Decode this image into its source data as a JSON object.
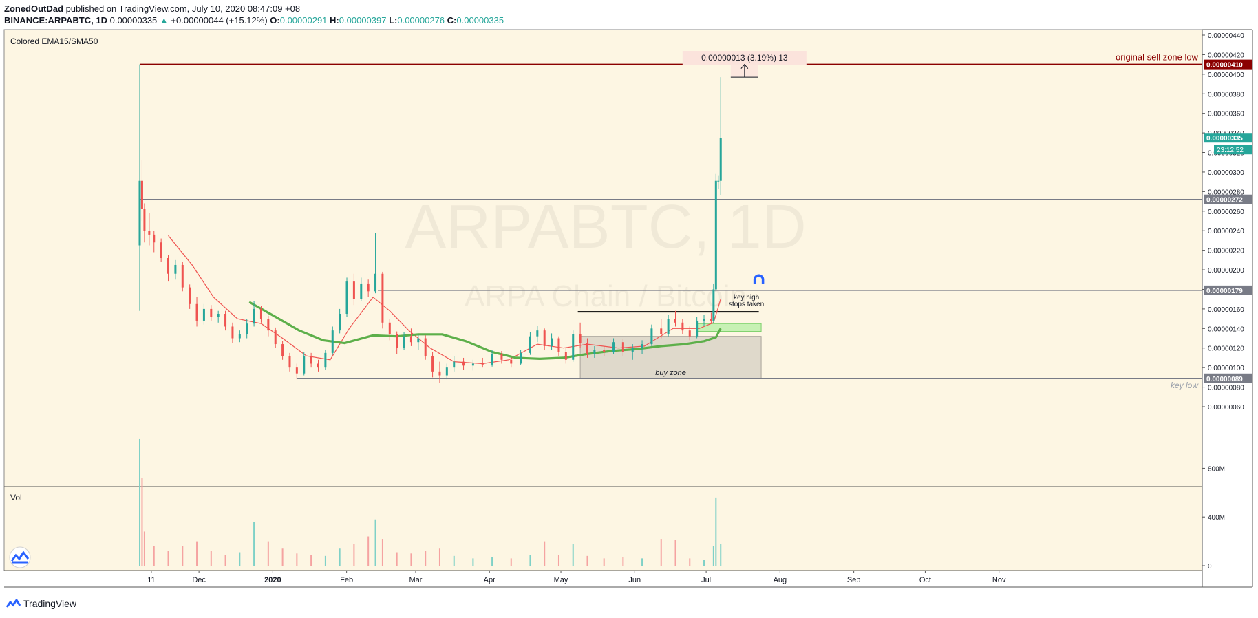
{
  "header": {
    "author": "ZonedOutDad",
    "published": "published on TradingView.com, July 10, 2020 08:47:09 +08"
  },
  "symbol_line": {
    "symbol": "BINANCE:ARPABTC, 1D",
    "price": "0.00000335",
    "arrow": "▲",
    "change": "+0.00000044 (+15.12%)",
    "o_label": "O:",
    "o": "0.00000291",
    "h_label": "H:",
    "h": "0.00000397",
    "l_label": "L:",
    "l": "0.00000276",
    "c_label": "C:",
    "c": "0.00000335"
  },
  "footer": {
    "brand": "TradingView"
  },
  "colors": {
    "background": "#fdf6e3",
    "up": "#26a69a",
    "down": "#ef5350",
    "ema15": "#ef5350",
    "sma50": "#5daf4a",
    "resistance": "#8b0000",
    "gray_line": "#787b86"
  },
  "chart_data": {
    "type": "candlestick",
    "indicator_label": "Colored EMA15/SMA50",
    "volume_label": "Vol",
    "watermark_symbol": "ARPABTC, 1D",
    "watermark_name": "ARPA Chain / Bitcoin",
    "x_tick_labels": [
      "11",
      "Dec",
      "2020",
      "Feb",
      "Mar",
      "Apr",
      "May",
      "Jun",
      "Jul",
      "Aug",
      "Sep",
      "Oct",
      "Nov"
    ],
    "y_tick_labels": [
      "0.00000440",
      "0.00000420",
      "0.00000400",
      "0.00000380",
      "0.00000360",
      "0.00000340",
      "0.00000320",
      "0.00000300",
      "0.00000280",
      "0.00000260",
      "0.00000240",
      "0.00000220",
      "0.00000200",
      "0.00000180",
      "0.00000160",
      "0.00000140",
      "0.00000120",
      "0.00000100",
      "0.00000080",
      "0.00000060"
    ],
    "y_ticks": [
      440,
      420,
      400,
      380,
      360,
      340,
      320,
      300,
      280,
      260,
      240,
      220,
      200,
      180,
      160,
      140,
      120,
      100,
      80,
      60
    ],
    "ylim_satoshi": [
      47,
      446
    ],
    "volume_tick_labels": [
      "800M",
      "400M",
      "0"
    ],
    "volume_ticks_millions": [
      800,
      400,
      0
    ],
    "price_tags": [
      {
        "value": 410,
        "label": "0.00000410",
        "style": "dark-red"
      },
      {
        "value": 335,
        "label": "0.00000335",
        "style": "green"
      },
      {
        "value": 272,
        "label": "0.00000272",
        "style": "gray"
      },
      {
        "value": 179,
        "label": "0.00000179",
        "style": "gray"
      },
      {
        "value": 89,
        "label": "0.00000089",
        "style": "gray"
      }
    ],
    "countdown": "23:12:52",
    "horizontal_levels": [
      {
        "value": 410,
        "from_date": "2019-11-09",
        "label": "original sell zone low"
      },
      {
        "value": 272,
        "from_date": "2019-11-09",
        "label": ""
      },
      {
        "value": 179,
        "from_date": "2020-02-17",
        "label": ""
      },
      {
        "value": 157,
        "from_date": "2020-05-11",
        "to_date": "2020-07-26",
        "label": "key high\nstops taken"
      },
      {
        "value": 89,
        "from_date": "2020-01-14",
        "label": "key low"
      }
    ],
    "zones": [
      {
        "label": "buy zone",
        "from_date": "2020-05-12",
        "to_date": "2020-07-27",
        "low": 89,
        "high": 132
      },
      {
        "label": "",
        "from_date": "2020-06-30",
        "to_date": "2020-07-27",
        "low": 137,
        "high": 145
      }
    ],
    "measurement": {
      "text": "0.00000013 (3.19%) 13",
      "from": 397,
      "to": 410,
      "date": "2020-07-20"
    },
    "candles": [
      {
        "date": "2019-11-09",
        "o": 225,
        "h": 410,
        "l": 158,
        "c": 291
      },
      {
        "date": "2019-11-10",
        "o": 291,
        "h": 312,
        "l": 250,
        "c": 262
      },
      {
        "date": "2019-11-11",
        "o": 262,
        "h": 268,
        "l": 228,
        "c": 240
      },
      {
        "date": "2019-11-13",
        "o": 240,
        "h": 258,
        "l": 225,
        "c": 236
      },
      {
        "date": "2019-11-15",
        "o": 236,
        "h": 240,
        "l": 218,
        "c": 228
      },
      {
        "date": "2019-11-18",
        "o": 228,
        "h": 232,
        "l": 208,
        "c": 212
      },
      {
        "date": "2019-11-21",
        "o": 212,
        "h": 215,
        "l": 188,
        "c": 196
      },
      {
        "date": "2019-11-24",
        "o": 196,
        "h": 210,
        "l": 190,
        "c": 205
      },
      {
        "date": "2019-11-27",
        "o": 205,
        "h": 208,
        "l": 178,
        "c": 182
      },
      {
        "date": "2019-11-30",
        "o": 182,
        "h": 185,
        "l": 160,
        "c": 165
      },
      {
        "date": "2019-12-03",
        "o": 165,
        "h": 172,
        "l": 142,
        "c": 148
      },
      {
        "date": "2019-12-06",
        "o": 148,
        "h": 165,
        "l": 144,
        "c": 160
      },
      {
        "date": "2019-12-09",
        "o": 160,
        "h": 164,
        "l": 148,
        "c": 152
      },
      {
        "date": "2019-12-12",
        "o": 152,
        "h": 158,
        "l": 146,
        "c": 155
      },
      {
        "date": "2019-12-15",
        "o": 155,
        "h": 158,
        "l": 138,
        "c": 142
      },
      {
        "date": "2019-12-18",
        "o": 142,
        "h": 146,
        "l": 125,
        "c": 130
      },
      {
        "date": "2019-12-21",
        "o": 130,
        "h": 138,
        "l": 126,
        "c": 134
      },
      {
        "date": "2019-12-24",
        "o": 134,
        "h": 150,
        "l": 130,
        "c": 145
      },
      {
        "date": "2019-12-27",
        "o": 145,
        "h": 168,
        "l": 142,
        "c": 160
      },
      {
        "date": "2019-12-30",
        "o": 160,
        "h": 163,
        "l": 146,
        "c": 150
      },
      {
        "date": "2020-01-02",
        "o": 150,
        "h": 153,
        "l": 132,
        "c": 138
      },
      {
        "date": "2020-01-05",
        "o": 138,
        "h": 141,
        "l": 120,
        "c": 124
      },
      {
        "date": "2020-01-08",
        "o": 124,
        "h": 127,
        "l": 108,
        "c": 112
      },
      {
        "date": "2020-01-11",
        "o": 112,
        "h": 115,
        "l": 96,
        "c": 100
      },
      {
        "date": "2020-01-14",
        "o": 100,
        "h": 104,
        "l": 88,
        "c": 94
      },
      {
        "date": "2020-01-17",
        "o": 94,
        "h": 116,
        "l": 92,
        "c": 112
      },
      {
        "date": "2020-01-20",
        "o": 112,
        "h": 115,
        "l": 100,
        "c": 104
      },
      {
        "date": "2020-01-23",
        "o": 104,
        "h": 108,
        "l": 96,
        "c": 100
      },
      {
        "date": "2020-01-26",
        "o": 100,
        "h": 118,
        "l": 98,
        "c": 115
      },
      {
        "date": "2020-01-29",
        "o": 115,
        "h": 142,
        "l": 113,
        "c": 138
      },
      {
        "date": "2020-02-01",
        "o": 138,
        "h": 160,
        "l": 135,
        "c": 155
      },
      {
        "date": "2020-02-04",
        "o": 155,
        "h": 192,
        "l": 152,
        "c": 188
      },
      {
        "date": "2020-02-07",
        "o": 188,
        "h": 196,
        "l": 164,
        "c": 170
      },
      {
        "date": "2020-02-10",
        "o": 170,
        "h": 192,
        "l": 168,
        "c": 186
      },
      {
        "date": "2020-02-13",
        "o": 186,
        "h": 190,
        "l": 172,
        "c": 178
      },
      {
        "date": "2020-02-16",
        "o": 178,
        "h": 238,
        "l": 176,
        "c": 196
      },
      {
        "date": "2020-02-19",
        "o": 196,
        "h": 198,
        "l": 140,
        "c": 146
      },
      {
        "date": "2020-02-22",
        "o": 146,
        "h": 150,
        "l": 128,
        "c": 134
      },
      {
        "date": "2020-02-25",
        "o": 134,
        "h": 137,
        "l": 114,
        "c": 120
      },
      {
        "date": "2020-02-28",
        "o": 120,
        "h": 136,
        "l": 118,
        "c": 132
      },
      {
        "date": "2020-03-02",
        "o": 132,
        "h": 140,
        "l": 122,
        "c": 126
      },
      {
        "date": "2020-03-05",
        "o": 126,
        "h": 134,
        "l": 118,
        "c": 130
      },
      {
        "date": "2020-03-08",
        "o": 130,
        "h": 133,
        "l": 108,
        "c": 112
      },
      {
        "date": "2020-03-11",
        "o": 112,
        "h": 116,
        "l": 90,
        "c": 96
      },
      {
        "date": "2020-03-14",
        "o": 96,
        "h": 106,
        "l": 84,
        "c": 92
      },
      {
        "date": "2020-03-17",
        "o": 92,
        "h": 104,
        "l": 88,
        "c": 100
      },
      {
        "date": "2020-03-20",
        "o": 100,
        "h": 112,
        "l": 96,
        "c": 106
      },
      {
        "date": "2020-03-24",
        "o": 106,
        "h": 110,
        "l": 98,
        "c": 102
      },
      {
        "date": "2020-03-28",
        "o": 102,
        "h": 108,
        "l": 97,
        "c": 104
      },
      {
        "date": "2020-04-01",
        "o": 104,
        "h": 110,
        "l": 100,
        "c": 103
      },
      {
        "date": "2020-04-05",
        "o": 103,
        "h": 118,
        "l": 101,
        "c": 114
      },
      {
        "date": "2020-04-09",
        "o": 114,
        "h": 117,
        "l": 104,
        "c": 108
      },
      {
        "date": "2020-04-13",
        "o": 108,
        "h": 111,
        "l": 100,
        "c": 104
      },
      {
        "date": "2020-04-17",
        "o": 104,
        "h": 118,
        "l": 103,
        "c": 115
      },
      {
        "date": "2020-04-21",
        "o": 115,
        "h": 136,
        "l": 113,
        "c": 132
      },
      {
        "date": "2020-04-24",
        "o": 132,
        "h": 143,
        "l": 126,
        "c": 138
      },
      {
        "date": "2020-04-27",
        "o": 138,
        "h": 140,
        "l": 118,
        "c": 122
      },
      {
        "date": "2020-04-30",
        "o": 122,
        "h": 135,
        "l": 118,
        "c": 130
      },
      {
        "date": "2020-05-03",
        "o": 130,
        "h": 132,
        "l": 112,
        "c": 116
      },
      {
        "date": "2020-05-06",
        "o": 116,
        "h": 120,
        "l": 104,
        "c": 108
      },
      {
        "date": "2020-05-09",
        "o": 108,
        "h": 138,
        "l": 106,
        "c": 134
      },
      {
        "date": "2020-05-12",
        "o": 134,
        "h": 146,
        "l": 120,
        "c": 125
      },
      {
        "date": "2020-05-15",
        "o": 125,
        "h": 130,
        "l": 110,
        "c": 114
      },
      {
        "date": "2020-05-18",
        "o": 114,
        "h": 122,
        "l": 110,
        "c": 118
      },
      {
        "date": "2020-05-22",
        "o": 118,
        "h": 122,
        "l": 112,
        "c": 116
      },
      {
        "date": "2020-05-26",
        "o": 116,
        "h": 130,
        "l": 114,
        "c": 126
      },
      {
        "date": "2020-05-30",
        "o": 126,
        "h": 129,
        "l": 112,
        "c": 116
      },
      {
        "date": "2020-06-03",
        "o": 116,
        "h": 124,
        "l": 108,
        "c": 120
      },
      {
        "date": "2020-06-07",
        "o": 120,
        "h": 128,
        "l": 114,
        "c": 124
      },
      {
        "date": "2020-06-11",
        "o": 124,
        "h": 144,
        "l": 122,
        "c": 140
      },
      {
        "date": "2020-06-15",
        "o": 140,
        "h": 150,
        "l": 130,
        "c": 134
      },
      {
        "date": "2020-06-18",
        "o": 134,
        "h": 154,
        "l": 132,
        "c": 150
      },
      {
        "date": "2020-06-21",
        "o": 150,
        "h": 158,
        "l": 142,
        "c": 146
      },
      {
        "date": "2020-06-24",
        "o": 146,
        "h": 150,
        "l": 134,
        "c": 138
      },
      {
        "date": "2020-06-27",
        "o": 138,
        "h": 142,
        "l": 128,
        "c": 132
      },
      {
        "date": "2020-06-30",
        "o": 132,
        "h": 152,
        "l": 130,
        "c": 148
      },
      {
        "date": "2020-07-03",
        "o": 148,
        "h": 154,
        "l": 143,
        "c": 150
      },
      {
        "date": "2020-07-06",
        "o": 150,
        "h": 156,
        "l": 145,
        "c": 148
      },
      {
        "date": "2020-07-07",
        "o": 148,
        "h": 186,
        "l": 146,
        "c": 180
      },
      {
        "date": "2020-07-08",
        "o": 180,
        "h": 298,
        "l": 178,
        "c": 291
      },
      {
        "date": "2020-07-09",
        "o": 291,
        "h": 296,
        "l": 283,
        "c": 291
      },
      {
        "date": "2020-07-10",
        "o": 291,
        "h": 397,
        "l": 276,
        "c": 335
      }
    ],
    "volume_millions": [
      {
        "date": "2019-11-09",
        "v": 1040
      },
      {
        "date": "2019-11-10",
        "v": 720
      },
      {
        "date": "2019-11-11",
        "v": 280
      },
      {
        "date": "2019-11-15",
        "v": 160
      },
      {
        "date": "2019-11-21",
        "v": 120
      },
      {
        "date": "2019-11-27",
        "v": 160
      },
      {
        "date": "2019-12-03",
        "v": 200
      },
      {
        "date": "2019-12-09",
        "v": 120
      },
      {
        "date": "2019-12-15",
        "v": 90
      },
      {
        "date": "2019-12-21",
        "v": 110
      },
      {
        "date": "2019-12-27",
        "v": 360
      },
      {
        "date": "2020-01-02",
        "v": 200
      },
      {
        "date": "2020-01-08",
        "v": 140
      },
      {
        "date": "2020-01-14",
        "v": 100
      },
      {
        "date": "2020-01-20",
        "v": 90
      },
      {
        "date": "2020-01-26",
        "v": 80
      },
      {
        "date": "2020-02-01",
        "v": 140
      },
      {
        "date": "2020-02-07",
        "v": 180
      },
      {
        "date": "2020-02-13",
        "v": 240
      },
      {
        "date": "2020-02-16",
        "v": 380
      },
      {
        "date": "2020-02-19",
        "v": 220
      },
      {
        "date": "2020-02-25",
        "v": 110
      },
      {
        "date": "2020-03-02",
        "v": 100
      },
      {
        "date": "2020-03-08",
        "v": 120
      },
      {
        "date": "2020-03-14",
        "v": 140
      },
      {
        "date": "2020-03-20",
        "v": 80
      },
      {
        "date": "2020-03-28",
        "v": 60
      },
      {
        "date": "2020-04-05",
        "v": 70
      },
      {
        "date": "2020-04-13",
        "v": 60
      },
      {
        "date": "2020-04-21",
        "v": 90
      },
      {
        "date": "2020-04-27",
        "v": 200
      },
      {
        "date": "2020-05-03",
        "v": 90
      },
      {
        "date": "2020-05-09",
        "v": 180
      },
      {
        "date": "2020-05-15",
        "v": 80
      },
      {
        "date": "2020-05-22",
        "v": 60
      },
      {
        "date": "2020-05-30",
        "v": 70
      },
      {
        "date": "2020-06-07",
        "v": 60
      },
      {
        "date": "2020-06-15",
        "v": 220
      },
      {
        "date": "2020-06-21",
        "v": 210
      },
      {
        "date": "2020-06-27",
        "v": 60
      },
      {
        "date": "2020-07-03",
        "v": 50
      },
      {
        "date": "2020-07-07",
        "v": 160
      },
      {
        "date": "2020-07-08",
        "v": 560
      },
      {
        "date": "2020-07-10",
        "v": 180
      }
    ],
    "ema15": [
      {
        "date": "2019-11-21",
        "v": 235
      },
      {
        "date": "2019-12-01",
        "v": 205
      },
      {
        "date": "2019-12-10",
        "v": 172
      },
      {
        "date": "2019-12-20",
        "v": 150
      },
      {
        "date": "2019-12-30",
        "v": 145
      },
      {
        "date": "2020-01-08",
        "v": 130
      },
      {
        "date": "2020-01-18",
        "v": 112
      },
      {
        "date": "2020-01-28",
        "v": 108
      },
      {
        "date": "2020-02-05",
        "v": 140
      },
      {
        "date": "2020-02-15",
        "v": 172
      },
      {
        "date": "2020-02-22",
        "v": 158
      },
      {
        "date": "2020-03-01",
        "v": 138
      },
      {
        "date": "2020-03-10",
        "v": 120
      },
      {
        "date": "2020-03-20",
        "v": 106
      },
      {
        "date": "2020-04-01",
        "v": 104
      },
      {
        "date": "2020-04-12",
        "v": 108
      },
      {
        "date": "2020-04-24",
        "v": 124
      },
      {
        "date": "2020-05-05",
        "v": 120
      },
      {
        "date": "2020-05-15",
        "v": 124
      },
      {
        "date": "2020-05-28",
        "v": 120
      },
      {
        "date": "2020-06-08",
        "v": 122
      },
      {
        "date": "2020-06-20",
        "v": 140
      },
      {
        "date": "2020-07-01",
        "v": 140
      },
      {
        "date": "2020-07-07",
        "v": 146
      },
      {
        "date": "2020-07-10",
        "v": 170
      }
    ],
    "sma50": [
      {
        "date": "2019-12-25",
        "v": 167
      },
      {
        "date": "2020-01-05",
        "v": 152
      },
      {
        "date": "2020-01-15",
        "v": 138
      },
      {
        "date": "2020-01-25",
        "v": 128
      },
      {
        "date": "2020-02-03",
        "v": 125
      },
      {
        "date": "2020-02-15",
        "v": 133
      },
      {
        "date": "2020-02-25",
        "v": 132
      },
      {
        "date": "2020-03-05",
        "v": 134
      },
      {
        "date": "2020-03-15",
        "v": 134
      },
      {
        "date": "2020-03-25",
        "v": 127
      },
      {
        "date": "2020-04-05",
        "v": 116
      },
      {
        "date": "2020-04-15",
        "v": 110
      },
      {
        "date": "2020-04-25",
        "v": 109
      },
      {
        "date": "2020-05-05",
        "v": 110
      },
      {
        "date": "2020-05-15",
        "v": 114
      },
      {
        "date": "2020-05-25",
        "v": 117
      },
      {
        "date": "2020-06-05",
        "v": 119
      },
      {
        "date": "2020-06-15",
        "v": 122
      },
      {
        "date": "2020-06-25",
        "v": 124
      },
      {
        "date": "2020-07-03",
        "v": 127
      },
      {
        "date": "2020-07-08",
        "v": 131
      },
      {
        "date": "2020-07-10",
        "v": 140
      }
    ]
  }
}
